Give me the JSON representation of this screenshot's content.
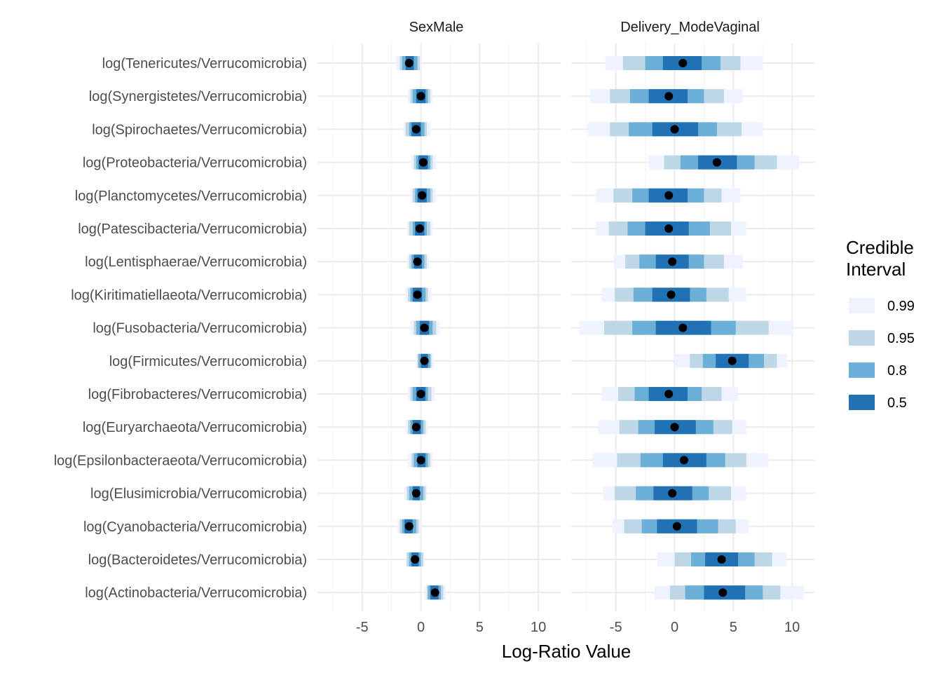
{
  "chart_data": {
    "type": "interval",
    "xlabel": "Log-Ratio Value",
    "facets": [
      "SexMale",
      "Delivery_ModeVaginal"
    ],
    "x_ticks": [
      -5,
      0,
      5,
      10
    ],
    "xlim": [
      -8.8,
      11.9
    ],
    "legend": {
      "title": [
        "Credible",
        "Interval"
      ],
      "position": "right",
      "levels": [
        {
          "label": "0.99",
          "color": "#eff3ff"
        },
        {
          "label": "0.95",
          "color": "#bdd7e7"
        },
        {
          "label": "0.8",
          "color": "#6baed6"
        },
        {
          "label": "0.5",
          "color": "#2171b5"
        }
      ]
    },
    "categories": [
      "log(Tenericutes/Verrucomicrobia)",
      "log(Synergistetes/Verrucomicrobia)",
      "log(Spirochaetes/Verrucomicrobia)",
      "log(Proteobacteria/Verrucomicrobia)",
      "log(Planctomycetes/Verrucomicrobia)",
      "log(Patescibacteria/Verrucomicrobia)",
      "log(Lentisphaerae/Verrucomicrobia)",
      "log(Kiritimatiellaeota/Verrucomicrobia)",
      "log(Fusobacteria/Verrucomicrobia)",
      "log(Firmicutes/Verrucomicrobia)",
      "log(Fibrobacteres/Verrucomicrobia)",
      "log(Euryarchaeota/Verrucomicrobia)",
      "log(Epsilonbacteraeota/Verrucomicrobia)",
      "log(Elusimicrobia/Verrucomicrobia)",
      "log(Cyanobacteria/Verrucomicrobia)",
      "log(Bacteroidetes/Verrucomicrobia)",
      "log(Actinobacteria/Verrucomicrobia)"
    ],
    "series": [
      {
        "name": "SexMale",
        "values": [
          {
            "median": -1.0,
            "i50": [
              -1.3,
              -0.6
            ],
            "i80": [
              -1.6,
              -0.3
            ],
            "i95": [
              -1.8,
              -0.1
            ],
            "i99": [
              -2.1,
              0.0
            ]
          },
          {
            "median": 0.0,
            "i50": [
              -0.4,
              0.4
            ],
            "i80": [
              -0.7,
              0.6
            ],
            "i95": [
              -0.9,
              0.8
            ],
            "i99": [
              -1.1,
              1.0
            ]
          },
          {
            "median": -0.4,
            "i50": [
              -0.8,
              0.0
            ],
            "i80": [
              -1.0,
              0.3
            ],
            "i95": [
              -1.3,
              0.5
            ],
            "i99": [
              -1.5,
              0.8
            ]
          },
          {
            "median": 0.2,
            "i50": [
              -0.2,
              0.6
            ],
            "i80": [
              -0.4,
              0.8
            ],
            "i95": [
              -0.6,
              1.0
            ],
            "i99": [
              -0.8,
              1.3
            ]
          },
          {
            "median": 0.1,
            "i50": [
              -0.3,
              0.5
            ],
            "i80": [
              -0.5,
              0.8
            ],
            "i95": [
              -0.7,
              1.0
            ],
            "i99": [
              -0.9,
              1.3
            ]
          },
          {
            "median": -0.1,
            "i50": [
              -0.5,
              0.3
            ],
            "i80": [
              -0.7,
              0.5
            ],
            "i95": [
              -1.0,
              0.8
            ],
            "i99": [
              -1.2,
              1.0
            ]
          },
          {
            "median": -0.3,
            "i50": [
              -0.6,
              0.1
            ],
            "i80": [
              -0.8,
              0.3
            ],
            "i95": [
              -1.0,
              0.5
            ],
            "i99": [
              -1.2,
              0.7
            ]
          },
          {
            "median": -0.3,
            "i50": [
              -0.7,
              0.1
            ],
            "i80": [
              -0.9,
              0.4
            ],
            "i95": [
              -1.1,
              0.6
            ],
            "i99": [
              -1.3,
              0.9
            ]
          },
          {
            "median": 0.3,
            "i50": [
              -0.1,
              0.7
            ],
            "i80": [
              -0.4,
              1.0
            ],
            "i95": [
              -0.6,
              1.3
            ],
            "i99": [
              -0.9,
              1.6
            ]
          },
          {
            "median": 0.3,
            "i50": [
              0.0,
              0.6
            ],
            "i80": [
              -0.2,
              0.8
            ],
            "i95": [
              -0.3,
              0.9
            ],
            "i99": [
              -0.4,
              1.1
            ]
          },
          {
            "median": 0.0,
            "i50": [
              -0.4,
              0.4
            ],
            "i80": [
              -0.7,
              0.6
            ],
            "i95": [
              -0.9,
              0.9
            ],
            "i99": [
              -1.1,
              1.2
            ]
          },
          {
            "median": -0.4,
            "i50": [
              -0.7,
              0.0
            ],
            "i80": [
              -0.9,
              0.2
            ],
            "i95": [
              -1.1,
              0.4
            ],
            "i99": [
              -1.3,
              0.6
            ]
          },
          {
            "median": 0.0,
            "i50": [
              -0.3,
              0.4
            ],
            "i80": [
              -0.6,
              0.6
            ],
            "i95": [
              -0.8,
              0.8
            ],
            "i99": [
              -1.1,
              1.0
            ]
          },
          {
            "median": -0.4,
            "i50": [
              -0.7,
              -0.1
            ],
            "i80": [
              -1.0,
              0.2
            ],
            "i95": [
              -1.2,
              0.4
            ],
            "i99": [
              -1.4,
              0.5
            ]
          },
          {
            "median": -1.0,
            "i50": [
              -1.4,
              -0.7
            ],
            "i80": [
              -1.6,
              -0.4
            ],
            "i95": [
              -1.8,
              -0.2
            ],
            "i99": [
              -2.0,
              0.0
            ]
          },
          {
            "median": -0.5,
            "i50": [
              -0.8,
              -0.2
            ],
            "i80": [
              -1.0,
              0.0
            ],
            "i95": [
              -1.2,
              0.2
            ],
            "i99": [
              -1.3,
              0.3
            ]
          },
          {
            "median": 1.2,
            "i50": [
              0.8,
              1.5
            ],
            "i80": [
              0.6,
              1.7
            ],
            "i95": [
              0.5,
              1.9
            ],
            "i99": [
              0.3,
              2.1
            ]
          }
        ]
      },
      {
        "name": "Delivery_ModeVaginal",
        "values": [
          {
            "median": 0.7,
            "i50": [
              -1.0,
              2.3
            ],
            "i80": [
              -2.5,
              3.9
            ],
            "i95": [
              -4.4,
              5.6
            ],
            "i99": [
              -5.9,
              7.5
            ]
          },
          {
            "median": -0.5,
            "i50": [
              -2.2,
              1.1
            ],
            "i80": [
              -3.8,
              2.5
            ],
            "i95": [
              -5.5,
              4.2
            ],
            "i99": [
              -7.2,
              5.8
            ]
          },
          {
            "median": 0.0,
            "i50": [
              -1.9,
              2.0
            ],
            "i80": [
              -3.9,
              3.6
            ],
            "i95": [
              -5.5,
              5.7
            ],
            "i99": [
              -7.4,
              7.5
            ]
          },
          {
            "median": 3.6,
            "i50": [
              2.0,
              5.3
            ],
            "i80": [
              0.5,
              6.8
            ],
            "i95": [
              -0.9,
              8.7
            ],
            "i99": [
              -2.2,
              10.6
            ]
          },
          {
            "median": -0.5,
            "i50": [
              -2.2,
              1.1
            ],
            "i80": [
              -3.6,
              2.5
            ],
            "i95": [
              -5.2,
              4.0
            ],
            "i99": [
              -6.7,
              5.6
            ]
          },
          {
            "median": -0.5,
            "i50": [
              -2.5,
              1.2
            ],
            "i80": [
              -4.0,
              3.0
            ],
            "i95": [
              -5.6,
              4.8
            ],
            "i99": [
              -6.7,
              6.1
            ]
          },
          {
            "median": -0.2,
            "i50": [
              -1.6,
              1.2
            ],
            "i80": [
              -3.0,
              2.5
            ],
            "i95": [
              -4.2,
              4.2
            ],
            "i99": [
              -5.2,
              5.8
            ]
          },
          {
            "median": -0.3,
            "i50": [
              -1.9,
              1.3
            ],
            "i80": [
              -3.5,
              2.7
            ],
            "i95": [
              -5.1,
              4.6
            ],
            "i99": [
              -6.2,
              6.1
            ]
          },
          {
            "median": 0.7,
            "i50": [
              -1.6,
              3.1
            ],
            "i80": [
              -3.6,
              5.2
            ],
            "i95": [
              -6.0,
              8.0
            ],
            "i99": [
              -8.1,
              10.1
            ]
          },
          {
            "median": 4.9,
            "i50": [
              3.5,
              6.3
            ],
            "i80": [
              2.4,
              7.6
            ],
            "i95": [
              1.3,
              8.7
            ],
            "i99": [
              0.0,
              9.6
            ]
          },
          {
            "median": -0.5,
            "i50": [
              -2.2,
              1.1
            ],
            "i80": [
              -3.4,
              2.3
            ],
            "i95": [
              -4.8,
              4.0
            ],
            "i99": [
              -6.2,
              5.4
            ]
          },
          {
            "median": 0.0,
            "i50": [
              -1.7,
              1.8
            ],
            "i80": [
              -3.1,
              3.3
            ],
            "i95": [
              -4.7,
              4.9
            ],
            "i99": [
              -6.5,
              6.1
            ]
          },
          {
            "median": 0.8,
            "i50": [
              -1.0,
              2.7
            ],
            "i80": [
              -2.9,
              4.3
            ],
            "i95": [
              -4.9,
              6.1
            ],
            "i99": [
              -7.0,
              8.0
            ]
          },
          {
            "median": -0.2,
            "i50": [
              -1.8,
              1.5
            ],
            "i80": [
              -3.3,
              2.9
            ],
            "i95": [
              -5.1,
              4.8
            ],
            "i99": [
              -6.1,
              6.1
            ]
          },
          {
            "median": 0.2,
            "i50": [
              -1.5,
              1.9
            ],
            "i80": [
              -2.8,
              3.7
            ],
            "i95": [
              -4.3,
              5.2
            ],
            "i99": [
              -5.3,
              6.3
            ]
          },
          {
            "median": 4.0,
            "i50": [
              2.6,
              5.4
            ],
            "i80": [
              1.4,
              6.8
            ],
            "i95": [
              0.0,
              8.3
            ],
            "i99": [
              -1.5,
              9.5
            ]
          },
          {
            "median": 4.1,
            "i50": [
              2.5,
              6.0
            ],
            "i80": [
              0.9,
              7.5
            ],
            "i95": [
              -0.4,
              9.0
            ],
            "i99": [
              -1.7,
              11.0
            ]
          }
        ]
      }
    ]
  }
}
